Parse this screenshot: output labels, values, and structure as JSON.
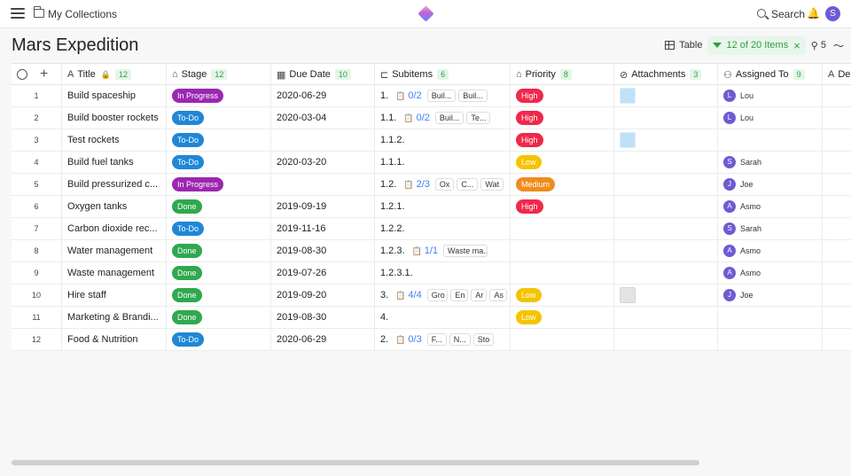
{
  "header": {
    "collection_label": "My Collections",
    "search_label": "Search",
    "user_initial": "S"
  },
  "page_title": "Mars Expedition",
  "toolbar": {
    "view_label": "Table",
    "filter_label": "12 of 20 Items",
    "count_label": "5"
  },
  "columns": [
    {
      "label": "Title",
      "count": "12",
      "icon": "text-icon"
    },
    {
      "label": "Stage",
      "count": "12",
      "icon": "tag-icon"
    },
    {
      "label": "Due Date",
      "count": "10",
      "icon": "calendar-icon"
    },
    {
      "label": "Subitems",
      "count": "6",
      "icon": "subitems-icon"
    },
    {
      "label": "Priority",
      "count": "8",
      "icon": "tag-icon"
    },
    {
      "label": "Attachments",
      "count": "3",
      "icon": "paperclip-icon"
    },
    {
      "label": "Assigned To",
      "count": "9",
      "icon": "person-icon"
    },
    {
      "label": "De",
      "count": "",
      "icon": "text-icon"
    }
  ],
  "stage_colors": {
    "In Progress": "#9c27b0",
    "To-Do": "#1f87d6",
    "Done": "#2fa84f"
  },
  "priority_colors": {
    "High": "#f0284a",
    "Low": "#f5c400",
    "Medium": "#f08c1e"
  },
  "rows": [
    {
      "num": "1",
      "title": "Build spaceship",
      "stage": "In Progress",
      "due": "2020-06-29",
      "sub_index": "1.",
      "sub_progress": "0/2",
      "sub_chips": [
        "Buil...",
        "Buil..."
      ],
      "priority": "High",
      "attachment": "blue",
      "assignee_initial": "L",
      "assignee": "Lou"
    },
    {
      "num": "2",
      "title": "Build booster rockets",
      "stage": "To-Do",
      "due": "2020-03-04",
      "sub_index": "1.1.",
      "sub_progress": "0/2",
      "sub_chips": [
        "Buil...",
        "Te..."
      ],
      "priority": "High",
      "attachment": "",
      "assignee_initial": "L",
      "assignee": "Lou"
    },
    {
      "num": "3",
      "title": "Test rockets",
      "stage": "To-Do",
      "due": "",
      "sub_index": "1.1.2.",
      "sub_progress": "",
      "sub_chips": [],
      "priority": "High",
      "attachment": "blue",
      "assignee_initial": "",
      "assignee": ""
    },
    {
      "num": "4",
      "title": "Build fuel tanks",
      "stage": "To-Do",
      "due": "2020-03-20",
      "sub_index": "1.1.1.",
      "sub_progress": "",
      "sub_chips": [],
      "priority": "Low",
      "attachment": "",
      "assignee_initial": "S",
      "assignee": "Sarah"
    },
    {
      "num": "5",
      "title": "Build pressurized c...",
      "stage": "In Progress",
      "due": "",
      "sub_index": "1.2.",
      "sub_progress": "2/3",
      "sub_chips": [
        "Ox",
        "C...",
        "Wat"
      ],
      "priority": "Medium",
      "attachment": "",
      "assignee_initial": "J",
      "assignee": "Joe"
    },
    {
      "num": "6",
      "title": "Oxygen tanks",
      "stage": "Done",
      "due": "2019-09-19",
      "sub_index": "1.2.1.",
      "sub_progress": "",
      "sub_chips": [],
      "priority": "High",
      "attachment": "",
      "assignee_initial": "A",
      "assignee": "Asmo"
    },
    {
      "num": "7",
      "title": "Carbon dioxide rec...",
      "stage": "To-Do",
      "due": "2019-11-16",
      "sub_index": "1.2.2.",
      "sub_progress": "",
      "sub_chips": [],
      "priority": "",
      "attachment": "",
      "assignee_initial": "S",
      "assignee": "Sarah"
    },
    {
      "num": "8",
      "title": "Water management",
      "stage": "Done",
      "due": "2019-08-30",
      "sub_index": "1.2.3.",
      "sub_progress": "1/1",
      "sub_chips": [
        "Waste ma..."
      ],
      "priority": "",
      "attachment": "",
      "assignee_initial": "A",
      "assignee": "Asmo"
    },
    {
      "num": "9",
      "title": "Waste management",
      "stage": "Done",
      "due": "2019-07-26",
      "sub_index": "1.2.3.1.",
      "sub_progress": "",
      "sub_chips": [],
      "priority": "",
      "attachment": "",
      "assignee_initial": "A",
      "assignee": "Asmo"
    },
    {
      "num": "10",
      "title": "Hire staff",
      "stage": "Done",
      "due": "2019-09-20",
      "sub_index": "3.",
      "sub_progress": "4/4",
      "sub_chips": [
        "Gro",
        "En",
        "Ar",
        "As"
      ],
      "priority": "Low",
      "attachment": "gray",
      "assignee_initial": "J",
      "assignee": "Joe"
    },
    {
      "num": "11",
      "title": "Marketing & Brandi...",
      "stage": "Done",
      "due": "2019-08-30",
      "sub_index": "4.",
      "sub_progress": "",
      "sub_chips": [],
      "priority": "Low",
      "attachment": "",
      "assignee_initial": "",
      "assignee": ""
    },
    {
      "num": "12",
      "title": "Food & Nutrition",
      "stage": "To-Do",
      "due": "2020-06-29",
      "sub_index": "2.",
      "sub_progress": "0/3",
      "sub_chips": [
        "F...",
        "N...",
        "Sto"
      ],
      "priority": "",
      "attachment": "",
      "assignee_initial": "",
      "assignee": ""
    }
  ]
}
